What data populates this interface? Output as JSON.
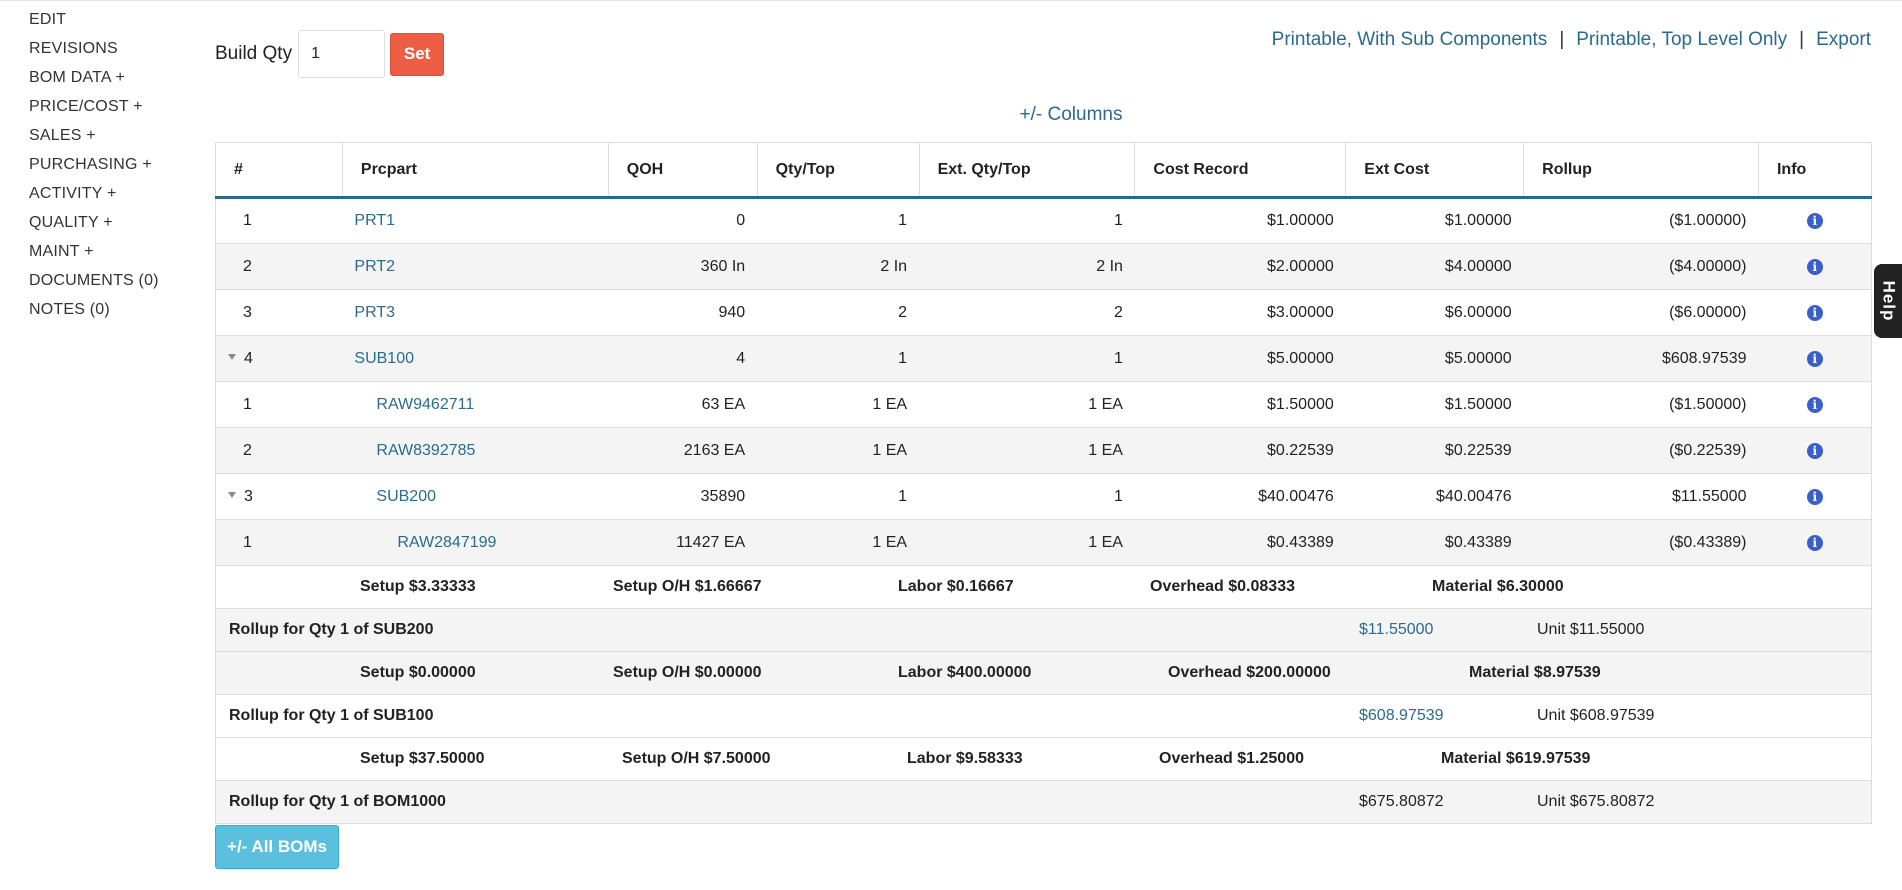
{
  "sidebar": {
    "items": [
      "EDIT",
      "REVISIONS",
      "BOM DATA +",
      "PRICE/COST +",
      "SALES +",
      "PURCHASING +",
      "ACTIVITY +",
      "QUALITY +",
      "MAINT +",
      "DOCUMENTS (0)",
      "NOTES (0)"
    ]
  },
  "build": {
    "label": "Build Qty",
    "qty_value": "1",
    "set_label": "Set"
  },
  "links": {
    "printable_sub": "Printable, With Sub Components",
    "printable_top": "Printable, Top Level Only",
    "export": "Export",
    "separator": "|"
  },
  "columns_toggle": "+/- Columns",
  "table": {
    "headers": [
      "#",
      "Prcpart",
      "QOH",
      "Qty/Top",
      "Ext. Qty/Top",
      "Cost Record",
      "Ext Cost",
      "Rollup",
      "Info"
    ],
    "rows": [
      {
        "num": "1",
        "part": "PRT1",
        "qoh": "0",
        "qty": "1",
        "ext_qty": "1",
        "cost": "$1.00000",
        "ext_cost": "$1.00000",
        "rollup": "($1.00000)",
        "info": "i"
      },
      {
        "num": "2",
        "part": "PRT2",
        "qoh": "360 In",
        "qty": "2 In",
        "ext_qty": "2 In",
        "cost": "$2.00000",
        "ext_cost": "$4.00000",
        "rollup": "($4.00000)",
        "info": "i"
      },
      {
        "num": "3",
        "part": "PRT3",
        "qoh": "940",
        "qty": "2",
        "ext_qty": "2",
        "cost": "$3.00000",
        "ext_cost": "$6.00000",
        "rollup": "($6.00000)",
        "info": "i"
      },
      {
        "num": "4",
        "part": "SUB100",
        "qoh": "4",
        "qty": "1",
        "ext_qty": "1",
        "cost": "$5.00000",
        "ext_cost": "$5.00000",
        "rollup": "$608.97539",
        "info": "i"
      },
      {
        "num": "1",
        "part": "RAW9462711",
        "qoh": "63 EA",
        "qty": "1 EA",
        "ext_qty": "1 EA",
        "cost": "$1.50000",
        "ext_cost": "$1.50000",
        "rollup": "($1.50000)",
        "info": "i"
      },
      {
        "num": "2",
        "part": "RAW8392785",
        "qoh": "2163 EA",
        "qty": "1 EA",
        "ext_qty": "1 EA",
        "cost": "$0.22539",
        "ext_cost": "$0.22539",
        "rollup": "($0.22539)",
        "info": "i"
      },
      {
        "num": "3",
        "part": "SUB200",
        "qoh": "35890",
        "qty": "1",
        "ext_qty": "1",
        "cost": "$40.00476",
        "ext_cost": "$40.00476",
        "rollup": "$11.55000",
        "info": "i"
      },
      {
        "num": "1",
        "part": "RAW2847199",
        "qoh": "11427 EA",
        "qty": "1 EA",
        "ext_qty": "1 EA",
        "cost": "$0.43389",
        "ext_cost": "$0.43389",
        "rollup": "($0.43389)",
        "info": "i"
      }
    ]
  },
  "summaries": {
    "sub200": {
      "setup": "Setup $3.33333",
      "setup_oh": "Setup O/H $1.66667",
      "labor": "Labor $0.16667",
      "overhead": "Overhead $0.08333",
      "material": "Material $6.30000",
      "rollup_label": "Rollup for Qty 1 of SUB200",
      "rollup_value": "$11.55000",
      "unit": "Unit $11.55000"
    },
    "sub100": {
      "setup": "Setup $0.00000",
      "setup_oh": "Setup O/H $0.00000",
      "labor": "Labor $400.00000",
      "overhead": "Overhead $200.00000",
      "material": "Material $8.97539",
      "rollup_label": "Rollup for Qty 1 of SUB100",
      "rollup_value": "$608.97539",
      "unit": "Unit $608.97539"
    },
    "bom1000": {
      "setup": "Setup $37.50000",
      "setup_oh": "Setup O/H $7.50000",
      "labor": "Labor $9.58333",
      "overhead": "Overhead $1.25000",
      "material": "Material $619.97539",
      "rollup_label": "Rollup for Qty 1 of BOM1000",
      "rollup_value": "$675.80872",
      "unit": "Unit $675.80872"
    }
  },
  "all_boms_label": "+/- All BOMs",
  "help_label": "Help"
}
